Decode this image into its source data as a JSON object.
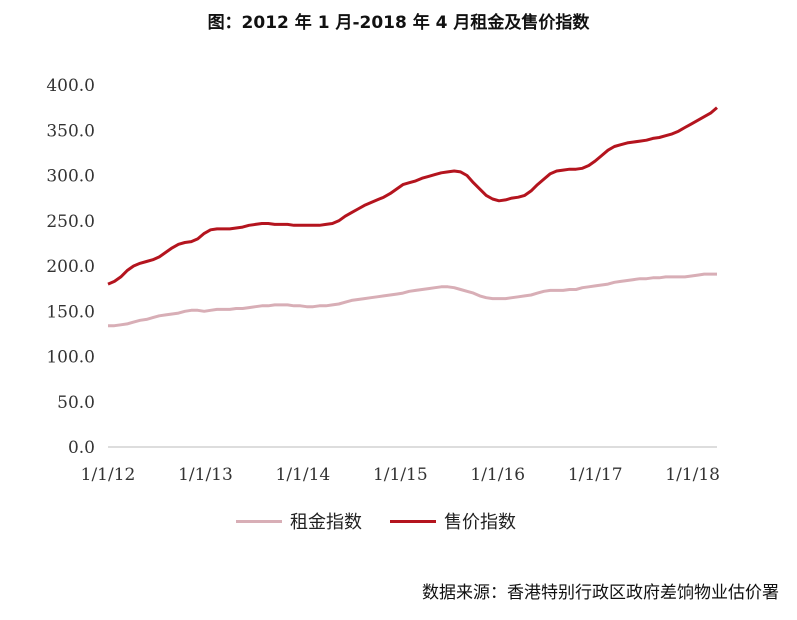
{
  "chart_data": {
    "type": "line",
    "title": "图：2012 年 1 月-2018 年 4 月租金及售价指数",
    "ylim": [
      0,
      400
    ],
    "yticks": [
      "400.0",
      "350.0",
      "300.0",
      "250.0",
      "200.0",
      "150.0",
      "100.0",
      "50.0",
      "0.0"
    ],
    "xticks": [
      "1/1/12",
      "1/1/13",
      "1/1/14",
      "1/1/15",
      "1/1/16",
      "1/1/17",
      "1/1/18"
    ],
    "x_start": "2012-01",
    "x_end": "2018-04",
    "legend_position": "bottom",
    "grid": false,
    "series": [
      {
        "name": "租金指数",
        "color": "#d8aeb6",
        "values": [
          134,
          134,
          135,
          136,
          138,
          140,
          141,
          143,
          145,
          146,
          147,
          148,
          150,
          151,
          151,
          150,
          151,
          152,
          152,
          152,
          153,
          153,
          154,
          155,
          156,
          156,
          157,
          157,
          157,
          156,
          156,
          155,
          155,
          156,
          156,
          157,
          158,
          160,
          162,
          163,
          164,
          165,
          166,
          167,
          168,
          169,
          170,
          172,
          173,
          174,
          175,
          176,
          177,
          177,
          176,
          174,
          172,
          170,
          167,
          165,
          164,
          164,
          164,
          165,
          166,
          167,
          168,
          170,
          172,
          173,
          173,
          173,
          174,
          174,
          176,
          177,
          178,
          179,
          180,
          182,
          183,
          184,
          185,
          186,
          186,
          187,
          187,
          188,
          188,
          188,
          188,
          189,
          190,
          191,
          191,
          191
        ]
      },
      {
        "name": "售价指数",
        "color": "#b4141e",
        "values": [
          180,
          183,
          188,
          195,
          200,
          203,
          205,
          207,
          210,
          215,
          220,
          224,
          226,
          227,
          230,
          236,
          240,
          241,
          241,
          241,
          242,
          243,
          245,
          246,
          247,
          247,
          246,
          246,
          246,
          245,
          245,
          245,
          245,
          245,
          246,
          247,
          250,
          255,
          259,
          263,
          267,
          270,
          273,
          276,
          280,
          285,
          290,
          292,
          294,
          297,
          299,
          301,
          303,
          304,
          305,
          304,
          300,
          292,
          285,
          278,
          274,
          272,
          273,
          275,
          276,
          278,
          283,
          290,
          296,
          302,
          305,
          306,
          307,
          307,
          308,
          311,
          316,
          322,
          328,
          332,
          334,
          336,
          337,
          338,
          339,
          341,
          342,
          344,
          346,
          349,
          353,
          357,
          361,
          365,
          369,
          375
        ]
      }
    ]
  },
  "source": "数据来源：香港特别行政区政府差饷物业估价署"
}
